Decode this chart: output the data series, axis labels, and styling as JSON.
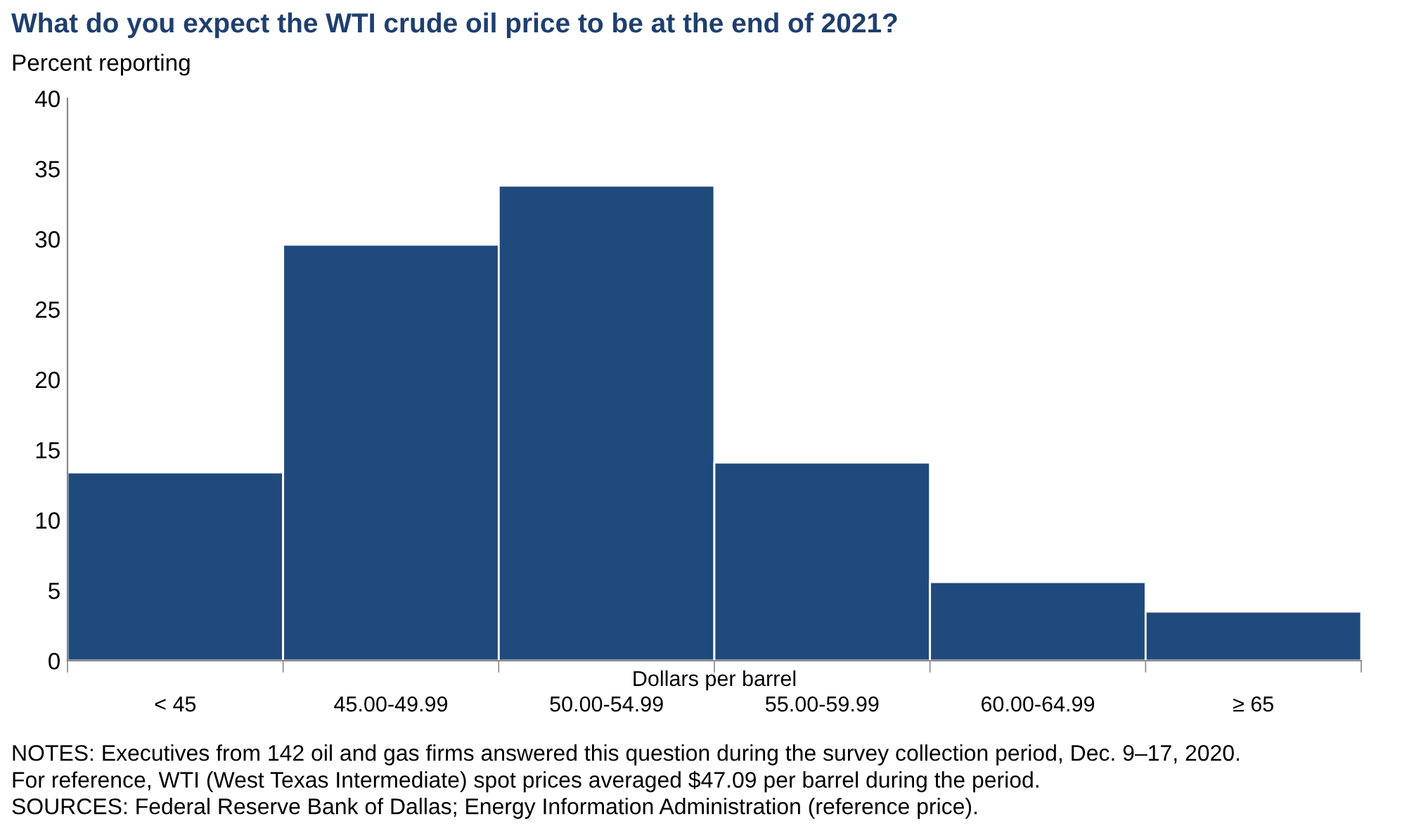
{
  "chart_data": {
    "type": "bar",
    "title": "What do you expect the WTI crude oil price to be at the end of 2021?",
    "ylabel": "Percent reporting",
    "xlabel": "Dollars per barrel",
    "categories": [
      "< 45",
      "45.00-49.99",
      "50.00-54.99",
      "55.00-59.99",
      "60.00-64.99",
      "≥ 65"
    ],
    "values": [
      13.4,
      29.6,
      33.8,
      14.1,
      5.6,
      3.5
    ],
    "color": "#214a7c",
    "ylim": [
      0,
      40
    ],
    "yticks": [
      0,
      5,
      10,
      15,
      20,
      25,
      30,
      35,
      40
    ],
    "grid": false,
    "legend": false,
    "annotations": [
      "NOTES: Executives from 142 oil and gas firms answered this question during the survey collection period, Dec. 9–17, 2020.",
      "For reference, WTI (West Texas Intermediate) spot prices averaged $47.09 per barrel during the period.",
      "SOURCES: Federal Reserve Bank of Dallas; Energy Information Administration (reference price)."
    ]
  }
}
